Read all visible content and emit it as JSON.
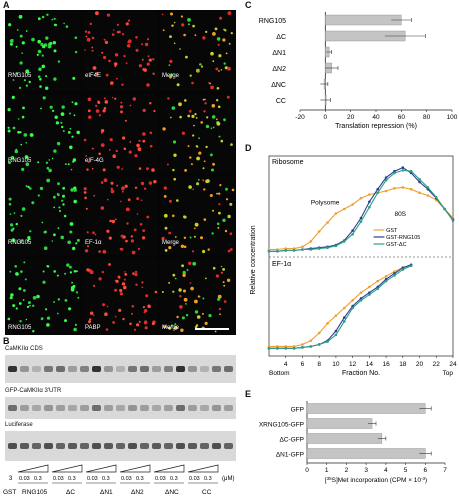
{
  "panel_labels": {
    "A": "A",
    "B": "B",
    "C": "C",
    "D": "D",
    "E": "E"
  },
  "panel_a": {
    "rows": [
      {
        "left": "RNG105",
        "mid": "eIF4E",
        "right": "Merge"
      },
      {
        "left": "RNG105",
        "mid": "eIF-4G",
        "right": ""
      },
      {
        "left": "RNG105",
        "mid": "EF-1α",
        "right": "Merge"
      },
      {
        "left": "RNG105",
        "mid": "PABP",
        "right": "Merge"
      }
    ]
  },
  "panel_b": {
    "blots": [
      "CaMKIIα CDS",
      "GFP-CaMKIIα 3'UTR",
      "Luciferase"
    ],
    "lane_labels": [
      "GST",
      "RNG105",
      "ΔC",
      "ΔN1",
      "ΔN2",
      "ΔNC",
      "CC"
    ],
    "conc_first": "3",
    "conc_pairs": [
      "0.03",
      "0.3"
    ],
    "unit": "(μM)"
  },
  "panel_c": {
    "chart_data": {
      "type": "bar",
      "categories": [
        "RNG105",
        "ΔC",
        "ΔN1",
        "ΔN2",
        "ΔNC",
        "CC"
      ],
      "values": [
        60,
        63,
        3,
        5,
        -1,
        0
      ],
      "errors": [
        8,
        16,
        2,
        5,
        3,
        4
      ],
      "xlabel": "Translation repression (%)",
      "xlim": [
        -20,
        100
      ],
      "ticks": [
        "-20",
        "0",
        "20",
        "40",
        "60",
        "80",
        "100"
      ],
      "tick_values": [
        -20,
        0,
        20,
        40,
        60,
        80,
        100
      ],
      "bar_color": "#c4c4c4"
    }
  },
  "panel_d": {
    "ylabel": "Relative concentration",
    "top_title": "Ribosome",
    "bottom_title": "EF-1α",
    "polysome": "Polysome",
    "s80": "80S",
    "xlabel": "Fraction No.",
    "bottom_end": "Bottom",
    "top_end": "Top",
    "legend": [
      "GST",
      "GST-RNG105",
      "GST-ΔC"
    ],
    "colors": [
      "#f0a030",
      "#2a3f8f",
      "#2e9e8a"
    ],
    "chart_data": {
      "type": "line",
      "x": [
        2,
        3,
        4,
        5,
        6,
        7,
        8,
        9,
        10,
        11,
        12,
        13,
        14,
        15,
        16,
        17,
        18,
        19,
        20,
        21,
        22,
        23,
        24
      ],
      "x_ticks": [
        "4",
        "6",
        "8",
        "10",
        "12",
        "14",
        "16",
        "18",
        "20",
        "22",
        "24"
      ],
      "x_tick_values": [
        4,
        6,
        8,
        10,
        12,
        14,
        16,
        18,
        20,
        22,
        24
      ],
      "ribosome": {
        "GST": [
          0.05,
          0.05,
          0.06,
          0.06,
          0.08,
          0.14,
          0.25,
          0.35,
          0.45,
          0.5,
          0.55,
          0.62,
          0.66,
          0.68,
          0.7,
          0.73,
          0.74,
          0.72,
          0.68,
          0.65,
          0.6,
          0.5,
          0.4
        ],
        "GST-RNG105": [
          0.03,
          0.03,
          0.04,
          0.04,
          0.05,
          0.06,
          0.07,
          0.08,
          0.1,
          0.15,
          0.26,
          0.4,
          0.58,
          0.72,
          0.85,
          0.92,
          0.96,
          0.9,
          0.8,
          0.72,
          0.62,
          0.5,
          0.38
        ],
        "GST-ΔC": [
          0.03,
          0.03,
          0.04,
          0.04,
          0.05,
          0.05,
          0.06,
          0.07,
          0.09,
          0.14,
          0.22,
          0.36,
          0.52,
          0.68,
          0.82,
          0.9,
          0.93,
          0.92,
          0.83,
          0.74,
          0.63,
          0.5,
          0.37
        ]
      },
      "ef1a": {
        "x": [
          2,
          3,
          4,
          5,
          6,
          7,
          8,
          9,
          10,
          11,
          12,
          13,
          14,
          15,
          16,
          17,
          18,
          19
        ],
        "GST": [
          0.1,
          0.1,
          0.1,
          0.1,
          0.12,
          0.16,
          0.24,
          0.34,
          0.42,
          0.5,
          0.58,
          0.66,
          0.72,
          0.78,
          0.83,
          0.88,
          0.92,
          0.95
        ],
        "GST-RNG105": [
          0.08,
          0.08,
          0.08,
          0.08,
          0.09,
          0.1,
          0.12,
          0.16,
          0.26,
          0.4,
          0.52,
          0.6,
          0.66,
          0.72,
          0.8,
          0.86,
          0.92,
          0.95
        ],
        "GST-ΔC": [
          0.08,
          0.08,
          0.08,
          0.08,
          0.09,
          0.1,
          0.12,
          0.15,
          0.22,
          0.36,
          0.5,
          0.58,
          0.64,
          0.7,
          0.78,
          0.84,
          0.9,
          0.94
        ]
      }
    }
  },
  "panel_e": {
    "chart_data": {
      "type": "bar",
      "categories": [
        "GFP",
        "XRNG105-GFP",
        "ΔC-GFP",
        "ΔN1-GFP"
      ],
      "values": [
        6.0,
        3.3,
        3.8,
        6.0
      ],
      "errors": [
        0.3,
        0.2,
        0.2,
        0.3
      ],
      "xlabel": "[35S]Met incorporation (CPM × 10^-3)",
      "xlabel_pre": "[",
      "xlabel_sup": "35",
      "xlabel_post": "S]Met incorporation (CPM × 10",
      "xlabel_exp": "-3",
      "xlabel_end": ")",
      "xlim": [
        0,
        7
      ],
      "ticks": [
        "0",
        "1",
        "2",
        "3",
        "4",
        "5",
        "6",
        "7"
      ],
      "tick_values": [
        0,
        1,
        2,
        3,
        4,
        5,
        6,
        7
      ],
      "bar_color": "#c4c4c4"
    }
  }
}
